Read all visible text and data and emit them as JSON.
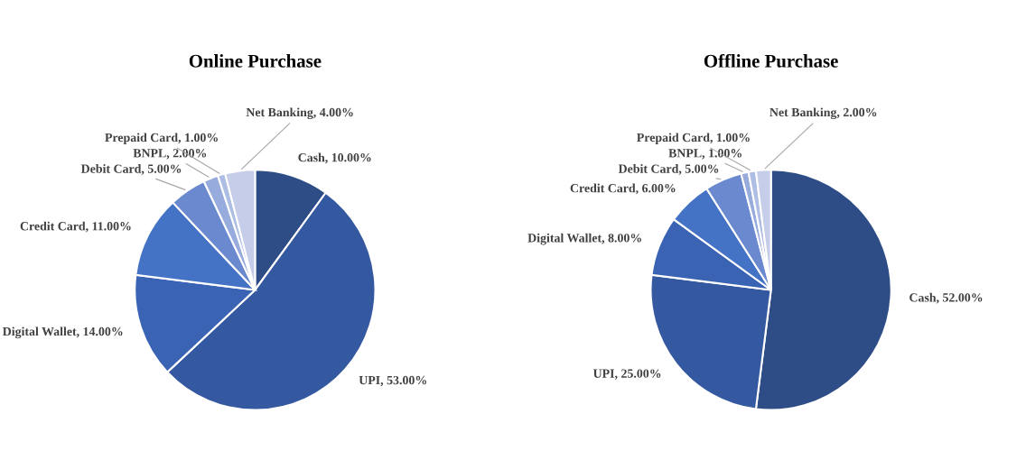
{
  "chart_data": [
    {
      "type": "pie",
      "title": "Online Purchase",
      "categories": [
        "Cash",
        "UPI",
        "Digital Wallet",
        "Credit Card",
        "Debit Card",
        "BNPL",
        "Prepaid Card",
        "Net Banking"
      ],
      "values": [
        10,
        53,
        14,
        11,
        5,
        2,
        1,
        4
      ],
      "value_labels": [
        "10.00%",
        "53.00%",
        "14.00%",
        "11.00%",
        "5.00%",
        "2.00%",
        "1.00%",
        "4.00%"
      ],
      "colors": [
        "#2e4c86",
        "#3459a0",
        "#3a63b4",
        "#4472c4",
        "#6a89cf",
        "#98abdd",
        "#aebde4",
        "#c5cde8"
      ]
    },
    {
      "type": "pie",
      "title": "Offline Purchase",
      "categories": [
        "Cash",
        "UPI",
        "Digital Wallet",
        "Credit Card",
        "Debit Card",
        "BNPL",
        "Prepaid Card",
        "Net Banking"
      ],
      "values": [
        52,
        25,
        8,
        6,
        5,
        1,
        1,
        2
      ],
      "value_labels": [
        "52.00%",
        "25.00%",
        "8.00%",
        "6.00%",
        "5.00%",
        "1.00%",
        "1.00%",
        "2.00%"
      ],
      "colors": [
        "#2e4c86",
        "#3459a0",
        "#3a63b4",
        "#4472c4",
        "#6a89cf",
        "#98abdd",
        "#aebde4",
        "#c5cde8"
      ]
    }
  ]
}
